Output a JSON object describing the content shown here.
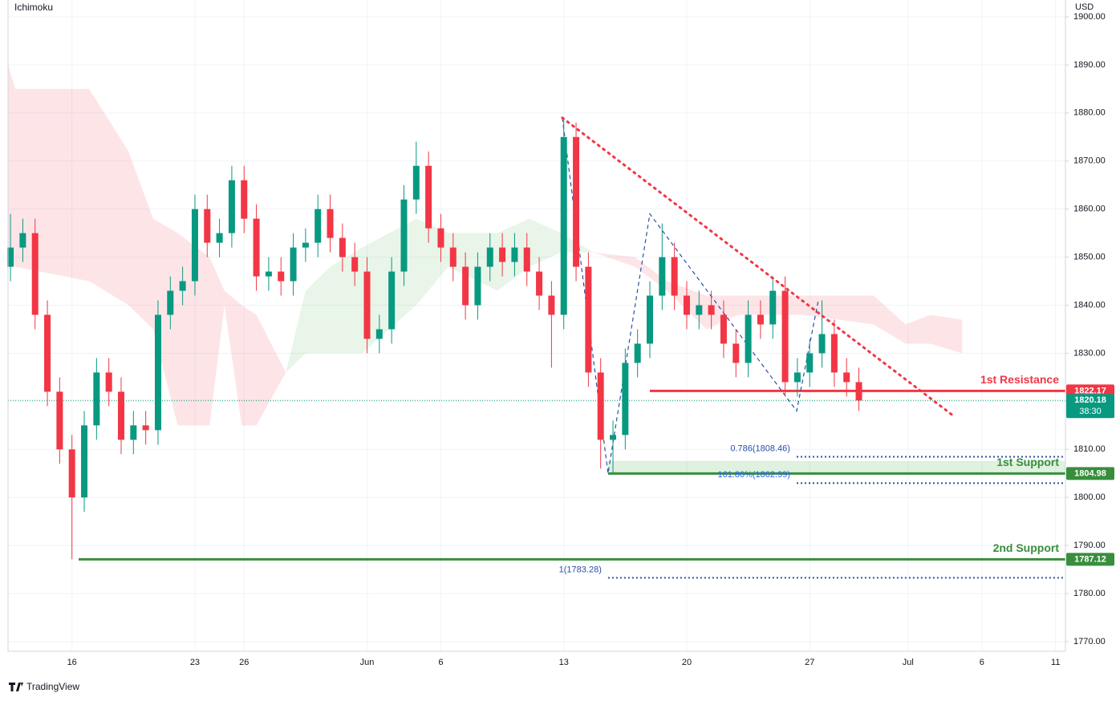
{
  "chart_data": {
    "type": "candlestick",
    "indicator": "Ichimoku",
    "currency": "USD",
    "footer": "TradingView",
    "xlim": [
      -2.6,
      40.4
    ],
    "ylim": [
      1768,
      1903.5
    ],
    "xticks": [
      {
        "value": 0,
        "label": "16"
      },
      {
        "value": 5,
        "label": "23"
      },
      {
        "value": 7,
        "label": "26"
      },
      {
        "value": 12,
        "label": "Jun"
      },
      {
        "value": 15,
        "label": "6"
      },
      {
        "value": 20,
        "label": "13"
      },
      {
        "value": 25,
        "label": "20"
      },
      {
        "value": 30,
        "label": "27"
      },
      {
        "value": 34,
        "label": "Jul"
      },
      {
        "value": 37,
        "label": "6"
      },
      {
        "value": 40,
        "label": "11"
      }
    ],
    "yticks": [
      {
        "value": 1770,
        "label": "1770.00"
      },
      {
        "value": 1780,
        "label": "1780.00"
      },
      {
        "value": 1790,
        "label": "1790.00"
      },
      {
        "value": 1800,
        "label": "1800.00"
      },
      {
        "value": 1810,
        "label": "1810.00"
      },
      {
        "value": 1820,
        "label": "1820.00"
      },
      {
        "value": 1830,
        "label": "1830.00"
      },
      {
        "value": 1840,
        "label": "1840.00"
      },
      {
        "value": 1850,
        "label": "1850.00"
      },
      {
        "value": 1860,
        "label": "1860.00"
      },
      {
        "value": 1870,
        "label": "1870.00"
      },
      {
        "value": 1880,
        "label": "1880.00"
      },
      {
        "value": 1890,
        "label": "1890.00"
      },
      {
        "value": 1900,
        "label": "1900.00"
      }
    ],
    "up_color": "#089981",
    "down_color": "#f23645",
    "candles": {
      "x": [
        -2.5,
        -2,
        -1.5,
        -1,
        -0.5,
        0,
        0.5,
        1,
        1.5,
        2,
        2.5,
        3,
        3.5,
        4,
        4.5,
        5,
        5.5,
        6,
        6.5,
        7,
        7.5,
        8,
        8.5,
        9,
        9.5,
        10,
        10.5,
        11,
        11.5,
        12,
        12.5,
        13,
        13.5,
        14,
        14.5,
        15,
        15.5,
        16,
        16.5,
        17,
        17.5,
        18,
        18.5,
        19,
        19.5,
        20,
        20.5,
        21,
        21.5,
        22,
        22.5,
        23,
        23.5,
        24,
        24.5,
        25,
        25.5,
        26,
        26.5,
        27,
        27.5,
        28,
        28.5,
        29,
        29.5,
        30,
        30.5,
        31,
        31.5,
        32
      ],
      "open": [
        1848,
        1852,
        1855,
        1838,
        1822,
        1810,
        1800,
        1815,
        1826,
        1822,
        1812,
        1815,
        1814,
        1838,
        1843,
        1845,
        1860,
        1853,
        1855,
        1866,
        1858,
        1846,
        1847,
        1845,
        1852,
        1853,
        1860,
        1854,
        1850,
        1847,
        1833,
        1835,
        1847,
        1862,
        1869,
        1856,
        1852,
        1848,
        1840,
        1848,
        1852,
        1849,
        1852,
        1847,
        1842,
        1838,
        1875,
        1848,
        1826,
        1812,
        1813,
        1828,
        1832,
        1842,
        1850,
        1842,
        1838,
        1840,
        1838,
        1832,
        1828,
        1838,
        1836,
        1843,
        1824,
        1826,
        1830,
        1834,
        1826,
        1824
      ],
      "high": [
        1859,
        1858,
        1858,
        1841,
        1825,
        1813,
        1818,
        1829,
        1829,
        1825,
        1818,
        1818,
        1841,
        1846,
        1848,
        1863,
        1863,
        1858,
        1869,
        1869,
        1861,
        1850,
        1850,
        1855,
        1856,
        1863,
        1863,
        1857,
        1853,
        1850,
        1838,
        1850,
        1865,
        1874,
        1872,
        1859,
        1855,
        1851,
        1851,
        1855,
        1855,
        1855,
        1855,
        1850,
        1845,
        1879,
        1878,
        1851,
        1829,
        1816,
        1831,
        1835,
        1845,
        1857,
        1853,
        1845,
        1843,
        1843,
        1841,
        1835,
        1841,
        1841,
        1846,
        1846,
        1829,
        1833,
        1841,
        1837,
        1829,
        1827
      ],
      "low": [
        1845,
        1849,
        1835,
        1819,
        1807,
        1787.12,
        1797,
        1812,
        1819,
        1809,
        1809,
        1811,
        1811,
        1835,
        1840,
        1842,
        1850,
        1850,
        1852,
        1855,
        1843,
        1843,
        1842,
        1842,
        1849,
        1850,
        1851,
        1847,
        1844,
        1830,
        1830,
        1832,
        1844,
        1859,
        1853,
        1849,
        1845,
        1837,
        1837,
        1845,
        1846,
        1846,
        1844,
        1839,
        1827,
        1835,
        1845,
        1823,
        1806,
        1805,
        1810,
        1825,
        1829,
        1839,
        1839,
        1835,
        1835,
        1835,
        1829,
        1825,
        1825,
        1833,
        1833,
        1821,
        1821,
        1823,
        1827,
        1823,
        1821,
        1818
      ],
      "close": [
        1852,
        1855,
        1838,
        1822,
        1810,
        1800,
        1815,
        1826,
        1822,
        1812,
        1815,
        1814,
        1838,
        1843,
        1845,
        1860,
        1853,
        1855,
        1866,
        1858,
        1846,
        1847,
        1845,
        1852,
        1853,
        1860,
        1854,
        1850,
        1847,
        1833,
        1835,
        1847,
        1862,
        1869,
        1856,
        1852,
        1848,
        1840,
        1848,
        1852,
        1849,
        1852,
        1847,
        1842,
        1838,
        1875,
        1848,
        1826,
        1812,
        1813,
        1828,
        1832,
        1842,
        1850,
        1842,
        1838,
        1840,
        1838,
        1832,
        1828,
        1838,
        1836,
        1843,
        1824,
        1826,
        1830,
        1834,
        1826,
        1824,
        1820.18
      ]
    },
    "cloud": [
      {
        "color": "#f23645",
        "x": [
          -2.6,
          -2.3,
          0.7,
          2.3,
          3.3,
          4.3,
          5.6,
          6.2,
          6.9,
          7.5,
          8.7
        ],
        "upper": [
          1890,
          1885,
          1885,
          1872,
          1858,
          1855,
          1850,
          1843,
          1840,
          1838,
          1826
        ],
        "lower": [
          1850,
          1848,
          1845,
          1840,
          1835,
          1815,
          1815,
          1840,
          1815,
          1815,
          1826
        ]
      },
      {
        "color": "#4caf50",
        "x": [
          8.7,
          9.5,
          10.5,
          11.8,
          14.0,
          15.3,
          17.3,
          18.6,
          19.9,
          21.2
        ],
        "upper": [
          1826,
          1843,
          1848,
          1852,
          1858,
          1855,
          1855,
          1858,
          1855,
          1851
        ],
        "lower": [
          1826,
          1830,
          1830,
          1830,
          1840,
          1848,
          1843,
          1848,
          1851,
          1851
        ]
      },
      {
        "color": "#f23645",
        "x": [
          21.2,
          22.9,
          24.2,
          25.8,
          27.1,
          29.7,
          32.6,
          33.9,
          34.9,
          36.2
        ],
        "upper": [
          1851,
          1850,
          1845,
          1842,
          1842,
          1842,
          1842,
          1836,
          1838,
          1837
        ],
        "lower": [
          1851,
          1848,
          1843,
          1835,
          1838,
          1838,
          1836,
          1832,
          1832,
          1830
        ]
      }
    ],
    "last_price": {
      "value": 1820.18,
      "countdown": "38:30",
      "color": "#089981"
    },
    "levels": [
      {
        "name": "1st Resistance",
        "value": 1822.17,
        "x_start": 23.5,
        "color": "#f23645"
      },
      {
        "name": "1st Support",
        "value": 1804.98,
        "zone_top": 1807.6,
        "x_start": 21.8,
        "color": "#388e3c"
      },
      {
        "name": "2nd Support",
        "value": 1787.12,
        "x_start": 0.27,
        "color": "#388e3c"
      }
    ],
    "fib_levels": [
      {
        "label": "0.786(1808.46)",
        "value": 1808.46,
        "x_start": 29.47
      },
      {
        "label": "161.80%(1802.99)",
        "value": 1802.99,
        "x_start": 29.47
      },
      {
        "label": "1(1783.28)",
        "value": 1783.28,
        "x_start": 21.8
      }
    ],
    "trendline": {
      "color": "#f23645",
      "x": [
        19.94,
        35.84
      ],
      "y": [
        1879,
        1817
      ]
    },
    "pattern": {
      "color": "#2a4fa8",
      "x": [
        19.94,
        21.8,
        23.5,
        29.47,
        30.35
      ],
      "y": [
        1879,
        1805,
        1859,
        1818,
        1841
      ]
    }
  }
}
